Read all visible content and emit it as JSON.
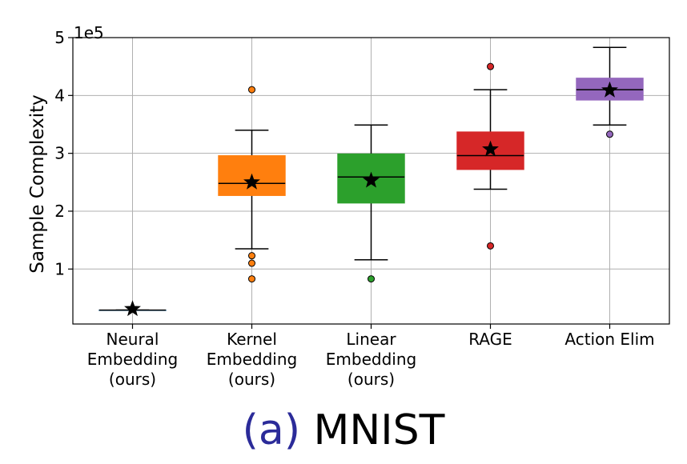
{
  "chart_data": {
    "type": "box",
    "ylabel": "Sample Complexity",
    "y_multiplier_label": "1e5",
    "ylim": [
      0.05,
      5.0
    ],
    "yticks": [
      1,
      2,
      3,
      4,
      5
    ],
    "grid": true,
    "categories": [
      [
        "Neural",
        "Embedding",
        "(ours)"
      ],
      [
        "Kernel",
        "Embedding",
        "(ours)"
      ],
      [
        "Linear",
        "Embedding",
        "(ours)"
      ],
      [
        "RAGE"
      ],
      [
        "Action Elim"
      ]
    ],
    "boxes": [
      {
        "color": "#1f77b4",
        "whislo": 0.29,
        "q1": 0.29,
        "median": 0.29,
        "q3": 0.29,
        "whishi": 0.29,
        "mean": 0.31,
        "fliers": []
      },
      {
        "color": "#ff7f0e",
        "whislo": 1.35,
        "q1": 2.27,
        "median": 2.48,
        "q3": 2.96,
        "whishi": 3.4,
        "mean": 2.5,
        "fliers": [
          0.83,
          1.1,
          1.23,
          4.1
        ]
      },
      {
        "color": "#2ca02c",
        "whislo": 1.16,
        "q1": 2.14,
        "median": 2.59,
        "q3": 2.99,
        "whishi": 3.49,
        "mean": 2.53,
        "fliers": [
          0.83
        ]
      },
      {
        "color": "#d62728",
        "whislo": 2.38,
        "q1": 2.72,
        "median": 2.96,
        "q3": 3.37,
        "whishi": 4.1,
        "mean": 3.07,
        "fliers": [
          1.4,
          4.5
        ]
      },
      {
        "color": "#9467bd",
        "whislo": 3.49,
        "q1": 3.92,
        "median": 4.1,
        "q3": 4.3,
        "whishi": 4.83,
        "mean": 4.09,
        "fliers": [
          3.33
        ]
      }
    ]
  },
  "caption": {
    "label": "(a)",
    "title": "MNIST"
  }
}
